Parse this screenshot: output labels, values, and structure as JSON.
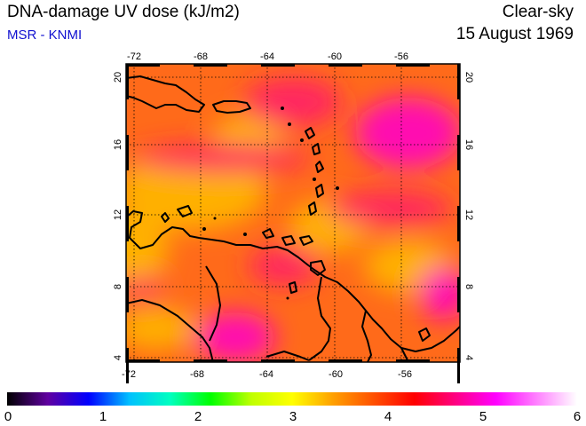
{
  "header": {
    "title": "DNA-damage UV dose (kJ/m2)",
    "credit": "MSR - KNMI",
    "condition": "Clear-sky",
    "date": "15 August 1969"
  },
  "map": {
    "lon_range": [
      -73,
      -52.5
    ],
    "lat_range": [
      3.5,
      20.5
    ],
    "lon_ticks": [
      "-72",
      "-68",
      "-64",
      "-60",
      "-56"
    ],
    "lat_ticks": [
      "20",
      "16",
      "12",
      "8",
      "4"
    ],
    "gridlines": true
  },
  "colorbar": {
    "min": 0,
    "max": 6,
    "tick_labels": [
      "0",
      "1",
      "2",
      "3",
      "4",
      "5",
      "6"
    ],
    "colors": [
      "#000000",
      "#6000a0",
      "#0000ff",
      "#00c0ff",
      "#00ffc0",
      "#00ff00",
      "#c0ff00",
      "#ffff00",
      "#ffa000",
      "#ff5000",
      "#ff0000",
      "#ff0080",
      "#ff00ff",
      "#ff80ff",
      "#ffffff"
    ]
  },
  "field_colors": {
    "low": "#ffb000",
    "mid": "#ff6a1a",
    "high": "#ff2860",
    "peak": "#ff10b0"
  }
}
